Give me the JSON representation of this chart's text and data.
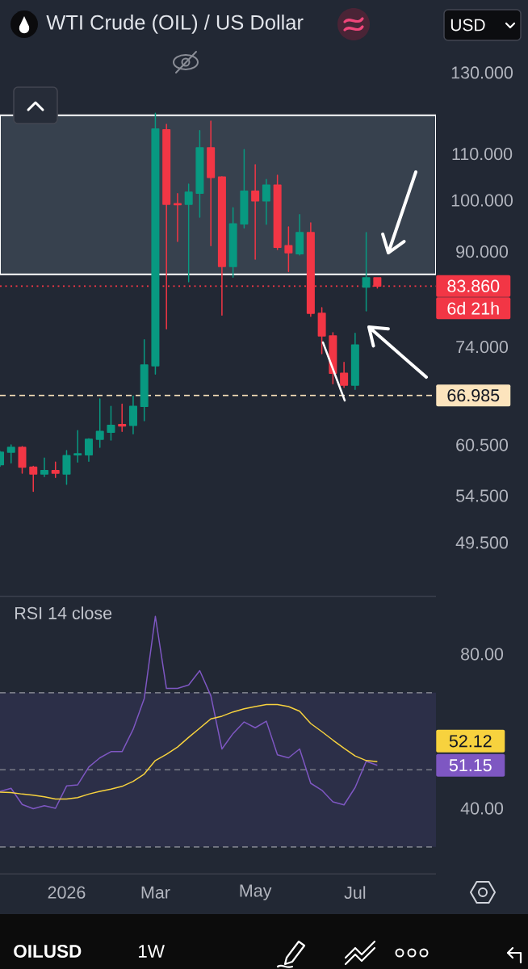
{
  "chart_data": [
    {
      "type": "candlestick",
      "title": "WTI Crude (OIL) / US Dollar",
      "x": [
        "2025-11-24",
        "2025-12-01",
        "2025-12-08",
        "2025-12-15",
        "2025-12-22",
        "2025-12-29",
        "2026-01-05",
        "2026-01-12",
        "2026-01-19",
        "2026-01-26",
        "2026-02-02",
        "2026-02-09",
        "2026-02-16",
        "2026-02-23",
        "2026-03-02",
        "2026-03-09",
        "2026-03-16",
        "2026-03-23",
        "2026-03-30",
        "2026-04-06",
        "2026-04-13",
        "2026-04-20",
        "2026-04-27",
        "2026-05-04",
        "2026-05-11",
        "2026-05-18",
        "2026-05-25",
        "2026-06-01",
        "2026-06-08",
        "2026-06-15",
        "2026-06-22",
        "2026-06-29",
        "2026-07-06",
        "2026-07-13",
        "2026-07-20"
      ],
      "ohlc": [
        [
          58.1,
          59.7,
          57.9,
          59.6
        ],
        [
          59.6,
          60.5,
          58.3,
          60.2
        ],
        [
          60.2,
          60.3,
          57.1,
          57.8
        ],
        [
          57.8,
          57.9,
          55.0,
          57.0
        ],
        [
          57.0,
          58.9,
          56.7,
          57.4
        ],
        [
          57.4,
          58.4,
          56.6,
          57.1
        ],
        [
          57.0,
          59.8,
          55.8,
          59.2
        ],
        [
          59.3,
          62.3,
          58.4,
          59.4
        ],
        [
          59.3,
          61.3,
          58.5,
          61.2
        ],
        [
          61.2,
          66.5,
          60.2,
          62.2
        ],
        [
          62.1,
          65.5,
          61.1,
          63.0
        ],
        [
          63.1,
          65.8,
          62.2,
          62.9
        ],
        [
          63.0,
          66.9,
          61.9,
          65.5
        ],
        [
          65.5,
          75.1,
          63.6,
          71.3
        ],
        [
          71.2,
          119.6,
          70.0,
          115.8
        ],
        [
          115.6,
          116.9,
          76.8,
          99.2
        ],
        [
          99.3,
          101.4,
          91.9,
          99.1
        ],
        [
          99.2,
          103.4,
          84.6,
          101.7
        ],
        [
          101.5,
          115.4,
          96.6,
          111.4
        ],
        [
          111.4,
          117.7,
          91.1,
          104.8
        ],
        [
          104.9,
          105.0,
          79.0,
          87.3
        ],
        [
          87.3,
          98.5,
          85.4,
          95.3
        ],
        [
          95.3,
          111.0,
          94.5,
          101.9
        ],
        [
          101.9,
          107.6,
          88.6,
          99.9
        ],
        [
          99.9,
          104.4,
          95.2,
          103.2
        ],
        [
          103.2,
          105.3,
          90.4,
          90.8
        ],
        [
          91.1,
          94.7,
          86.4,
          89.8
        ],
        [
          89.6,
          97.1,
          89.4,
          93.6
        ],
        [
          93.6,
          95.5,
          78.8,
          79.3
        ],
        [
          79.3,
          80.2,
          73.0,
          75.7
        ],
        [
          75.7,
          76.2,
          68.6,
          70.1
        ],
        [
          70.1,
          71.7,
          68.1,
          68.4
        ],
        [
          68.4,
          76.1,
          67.8,
          74.3
        ],
        [
          83.7,
          93.6,
          79.7,
          85.3
        ],
        [
          85.3,
          85.3,
          83.5,
          83.86
        ]
      ],
      "colors": [
        "#089981",
        "#089981",
        "#f23645",
        "#f23645",
        "#089981",
        "#f23645",
        "#089981",
        "#089981",
        "#089981",
        "#089981",
        "#089981",
        "#f23645",
        "#089981",
        "#089981",
        "#089981",
        "#f23645",
        "#f23645",
        "#089981",
        "#089981",
        "#f23645",
        "#f23645",
        "#089981",
        "#089981",
        "#f23645",
        "#089981",
        "#f23645",
        "#f23645",
        "#089981",
        "#f23645",
        "#f23645",
        "#f23645",
        "#f23645",
        "#089981",
        "#089981",
        "#f23645"
      ],
      "xlim": [
        "2025-11-24",
        "2026-08-26"
      ],
      "ylim": [
        49.5,
        130
      ],
      "yticks": [
        {
          "value": 49.5,
          "label": "49.500"
        },
        {
          "value": 54.5,
          "label": "54.500"
        },
        {
          "value": 60.5,
          "label": "60.500"
        },
        {
          "value": 74,
          "label": "74.000"
        },
        {
          "value": 90,
          "label": "90.000"
        },
        {
          "value": 100,
          "label": "100.000"
        },
        {
          "value": 110,
          "label": "110.000"
        },
        {
          "value": 130,
          "label": "130.000"
        }
      ],
      "log": "y",
      "tick_labels": "y",
      "ref_lines": [
        {
          "axis": "y",
          "value": 83.86,
          "label": "83.860",
          "color": "#f23645",
          "line_style": "dotted"
        },
        {
          "axis": "y",
          "value": 66.985,
          "label": "66.985",
          "color": "#fce4bd",
          "line_style": "dashed"
        }
      ],
      "bands": [
        {
          "axis": "y",
          "from": 85.9,
          "to": 119.1,
          "color": "#37414e"
        }
      ],
      "annotations": [
        "6d 21h",
        "USD"
      ]
    },
    {
      "type": "line",
      "title": "RSI 14 close",
      "x": [
        "2025-11-24",
        "2025-12-01",
        "2025-12-08",
        "2025-12-15",
        "2025-12-22",
        "2025-12-29",
        "2026-01-05",
        "2026-01-12",
        "2026-01-19",
        "2026-01-26",
        "2026-02-02",
        "2026-02-09",
        "2026-02-16",
        "2026-02-23",
        "2026-03-02",
        "2026-03-09",
        "2026-03-16",
        "2026-03-23",
        "2026-03-30",
        "2026-04-06",
        "2026-04-13",
        "2026-04-20",
        "2026-04-27",
        "2026-05-04",
        "2026-05-11",
        "2026-05-18",
        "2026-05-25",
        "2026-06-01",
        "2026-06-08",
        "2026-06-15",
        "2026-06-22",
        "2026-06-29",
        "2026-07-06",
        "2026-07-13",
        "2026-07-20"
      ],
      "series": [
        {
          "color": "#7e57c2",
          "values": [
            44.4,
            45.2,
            41.0,
            39.9,
            40.7,
            40.0,
            45.8,
            46.1,
            50.7,
            53.1,
            54.7,
            54.7,
            60.5,
            68.5,
            89.8,
            71.1,
            71.1,
            72.0,
            75.7,
            69.2,
            55.4,
            59.4,
            62.4,
            60.9,
            62.6,
            53.9,
            53.1,
            55.4,
            46.5,
            44.7,
            41.7,
            40.9,
            45.4,
            52.2,
            51.15
          ]
        },
        {
          "color": "#f7d23e",
          "values": [
            44.2,
            44.1,
            43.7,
            43.4,
            43.0,
            42.4,
            42.4,
            42.8,
            43.7,
            44.4,
            45.0,
            45.7,
            47.0,
            48.9,
            52.4,
            54.0,
            55.9,
            58.4,
            60.8,
            63.2,
            63.9,
            65.0,
            65.8,
            66.4,
            66.9,
            66.9,
            66.4,
            65.2,
            62.0,
            59.9,
            57.7,
            55.6,
            53.6,
            52.4,
            52.12
          ]
        }
      ],
      "xlim": [
        "2025-11-24",
        "2026-08-26"
      ],
      "xticks": [
        {
          "value": "2026-01-05",
          "label": "2026"
        },
        {
          "value": "2026-03-02",
          "label": "Mar"
        },
        {
          "value": "2026-05-04",
          "label": "May"
        },
        {
          "value": "2026-07-06",
          "label": "Jul"
        }
      ],
      "ylim": [
        23,
        95
      ],
      "yticks": [
        {
          "value": 40,
          "label": "40.00"
        },
        {
          "value": 80,
          "label": "80.00"
        }
      ],
      "ref_lines": [
        {
          "axis": "y",
          "value": 70,
          "color": "#787b86",
          "line_style": "dashed"
        },
        {
          "axis": "y",
          "value": 50,
          "color": "#787b86",
          "line_style": "dashed"
        },
        {
          "axis": "y",
          "value": 30,
          "color": "#787b86",
          "line_style": "dashed"
        }
      ],
      "bands": [
        {
          "axis": "y",
          "from": 30,
          "to": 70,
          "color": "#2c2f48"
        }
      ],
      "annotations": [
        "OILUSD",
        "1W",
        "51.15",
        "52.12"
      ]
    }
  ]
}
